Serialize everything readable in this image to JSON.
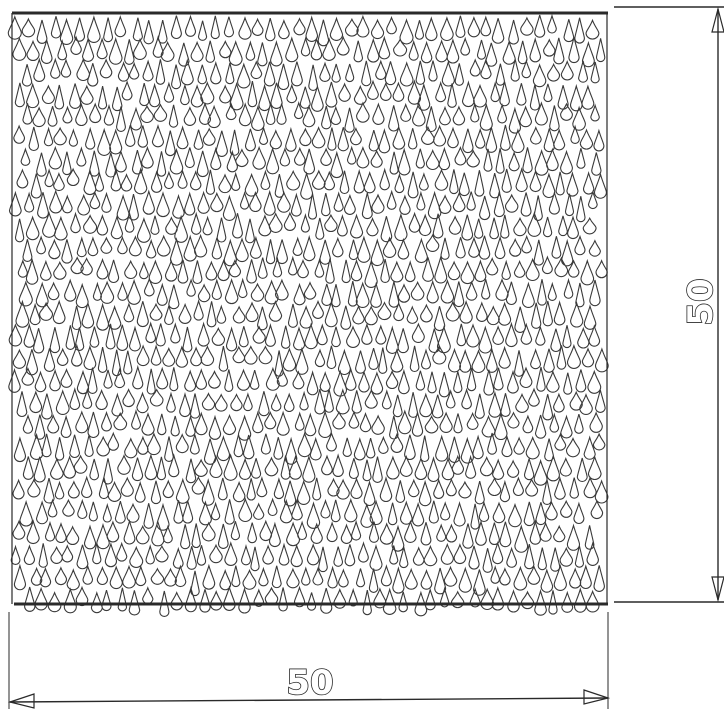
{
  "drawing": {
    "dimensions": {
      "width_label": "50",
      "height_label": "50"
    },
    "pattern_icon": "water-droplet-texture",
    "colors": {
      "ink": "#2a2a2a",
      "background": "#ffffff"
    }
  }
}
